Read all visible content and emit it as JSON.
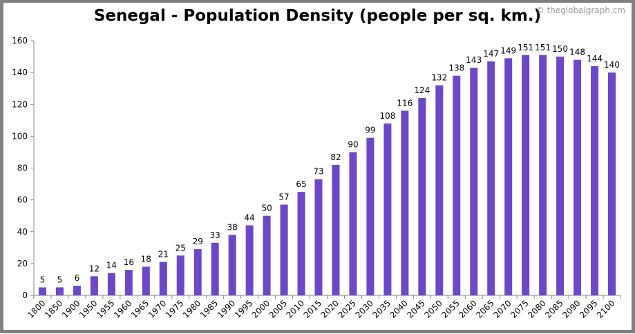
{
  "chart_data": {
    "type": "bar",
    "title": "Senegal - Population Density (people per sq. km.)",
    "credit": "© theglobalgraph.cm",
    "xlabel": "",
    "ylabel": "",
    "ylim": [
      0,
      160
    ],
    "yticks": [
      0,
      20,
      40,
      60,
      80,
      100,
      120,
      140,
      160
    ],
    "grid": false,
    "bar_color": "#6a48c8",
    "categories": [
      "1800",
      "1850",
      "1900",
      "1950",
      "1955",
      "1960",
      "1965",
      "1970",
      "1975",
      "1980",
      "1985",
      "1990",
      "1995",
      "2000",
      "2005",
      "2010",
      "2015",
      "2020",
      "2025",
      "2030",
      "2035",
      "2040",
      "2045",
      "2050",
      "2055",
      "2060",
      "2065",
      "2070",
      "2075",
      "2080",
      "2085",
      "2090",
      "2095",
      "2100"
    ],
    "values": [
      5,
      5,
      6,
      12,
      14,
      16,
      18,
      21,
      25,
      29,
      33,
      38,
      44,
      50,
      57,
      65,
      73,
      82,
      90,
      99,
      108,
      116,
      124,
      132,
      138,
      143,
      147,
      149,
      151,
      151,
      150,
      148,
      144,
      140
    ]
  }
}
